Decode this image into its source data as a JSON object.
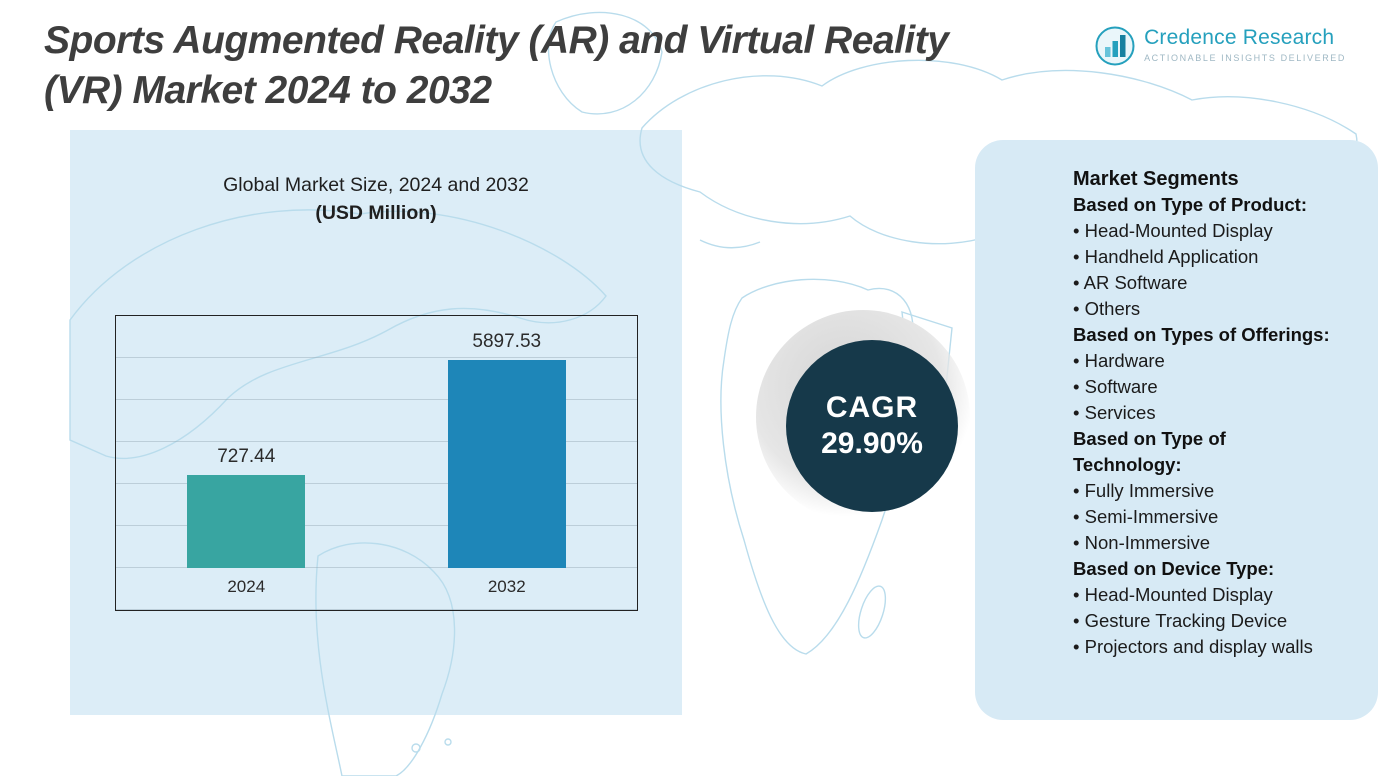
{
  "header": {
    "title": "Sports Augmented Reality (AR) and Virtual Reality (VR) Market 2024 to 2032"
  },
  "logo": {
    "name": "Credence Research",
    "tagline": "Actionable Insights Delivered"
  },
  "chart_data": {
    "type": "bar",
    "title": "Global Market Size, 2024 and 2032",
    "subtitle": "(USD Million)",
    "categories": [
      "2024",
      "2032"
    ],
    "values": [
      727.44,
      5897.53
    ],
    "value_labels": [
      "727.44",
      "5897.53"
    ],
    "bar_colors": [
      "#38a5a1",
      "#1e86b8"
    ],
    "xlabel": "",
    "ylabel": "",
    "ylim": [
      0,
      6500
    ],
    "grid": true,
    "legend_position": "none"
  },
  "cagr": {
    "label": "CAGR",
    "value": "29.90%"
  },
  "segments": {
    "heading": "Market Segments",
    "groups": [
      {
        "heading": "Based on Type of Product:",
        "items": [
          "Head-Mounted Display",
          "Handheld Application",
          "AR Software",
          "Others"
        ]
      },
      {
        "heading": "Based on Types of Offerings:",
        "items": [
          "Hardware",
          "Software",
          "Services"
        ]
      },
      {
        "heading": "Based on Type of Technology:",
        "items": [
          "Fully Immersive",
          "Semi-Immersive",
          "Non-Immersive"
        ]
      },
      {
        "heading": "Based on Device Type:",
        "items": [
          "Head-Mounted Display",
          "Gesture Tracking Device",
          "Projectors and display walls"
        ]
      }
    ]
  },
  "colors": {
    "accent_teal": "#25a0bd",
    "bar_2024": "#38a5a1",
    "bar_2032": "#1e86b8",
    "cagr_circle": "#16394a",
    "panel_blue": "#dcedf7",
    "map_line": "#b9dcec"
  }
}
